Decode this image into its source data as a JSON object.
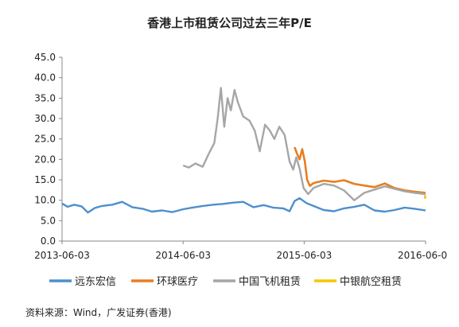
{
  "chart_data": {
    "type": "line",
    "title": "香港上市租赁公司过去三年P/E",
    "xlabel": "",
    "ylabel": "",
    "ylim": [
      0,
      45
    ],
    "yticks": [
      "0.0",
      "5.0",
      "10.0",
      "15.0",
      "20.0",
      "25.0",
      "30.0",
      "35.0",
      "40.0",
      "45.0"
    ],
    "xlim": [
      "2013-06-03",
      "2016-06-03"
    ],
    "xticks": [
      "2013-06-03",
      "2014-06-03",
      "2015-06-03",
      "2016-06-0"
    ],
    "grid": false,
    "legend_position": "bottom",
    "series": [
      {
        "name": "远东宏信",
        "color": "#4E8FCC",
        "points": [
          [
            "2013-06-03",
            9.2
          ],
          [
            "2013-06-20",
            8.4
          ],
          [
            "2013-07-10",
            8.9
          ],
          [
            "2013-08-01",
            8.5
          ],
          [
            "2013-08-20",
            7.0
          ],
          [
            "2013-09-10",
            8.1
          ],
          [
            "2013-10-01",
            8.6
          ],
          [
            "2013-11-01",
            8.9
          ],
          [
            "2013-12-01",
            9.6
          ],
          [
            "2014-01-01",
            8.3
          ],
          [
            "2014-02-01",
            7.9
          ],
          [
            "2014-03-01",
            7.2
          ],
          [
            "2014-04-01",
            7.5
          ],
          [
            "2014-05-01",
            7.1
          ],
          [
            "2014-06-03",
            7.8
          ],
          [
            "2014-07-01",
            8.2
          ],
          [
            "2014-08-01",
            8.6
          ],
          [
            "2014-09-01",
            8.9
          ],
          [
            "2014-10-01",
            9.1
          ],
          [
            "2014-11-01",
            9.4
          ],
          [
            "2014-12-01",
            9.6
          ],
          [
            "2015-01-01",
            8.3
          ],
          [
            "2015-02-01",
            8.8
          ],
          [
            "2015-03-01",
            8.2
          ],
          [
            "2015-04-01",
            8.0
          ],
          [
            "2015-04-20",
            7.3
          ],
          [
            "2015-05-05",
            9.8
          ],
          [
            "2015-05-20",
            10.5
          ],
          [
            "2015-06-10",
            9.3
          ],
          [
            "2015-07-01",
            8.6
          ],
          [
            "2015-08-01",
            7.6
          ],
          [
            "2015-09-01",
            7.3
          ],
          [
            "2015-10-01",
            8.0
          ],
          [
            "2015-11-01",
            8.4
          ],
          [
            "2015-12-01",
            8.9
          ],
          [
            "2016-01-01",
            7.5
          ],
          [
            "2016-02-01",
            7.2
          ],
          [
            "2016-03-01",
            7.6
          ],
          [
            "2016-04-01",
            8.2
          ],
          [
            "2016-05-01",
            7.9
          ],
          [
            "2016-06-03",
            7.5
          ]
        ]
      },
      {
        "name": "环球医疗",
        "color": "#E67E22",
        "points": [
          [
            "2015-05-05",
            23.0
          ],
          [
            "2015-05-12",
            21.5
          ],
          [
            "2015-05-20",
            20.0
          ],
          [
            "2015-05-28",
            22.5
          ],
          [
            "2015-06-05",
            19.5
          ],
          [
            "2015-06-12",
            15.0
          ],
          [
            "2015-06-20",
            13.5
          ],
          [
            "2015-07-01",
            14.2
          ],
          [
            "2015-08-01",
            14.8
          ],
          [
            "2015-09-01",
            14.5
          ],
          [
            "2015-10-01",
            14.9
          ],
          [
            "2015-11-01",
            14.0
          ],
          [
            "2015-12-01",
            13.6
          ],
          [
            "2016-01-01",
            13.2
          ],
          [
            "2016-02-01",
            14.1
          ],
          [
            "2016-03-01",
            13.0
          ],
          [
            "2016-04-01",
            12.4
          ],
          [
            "2016-05-01",
            12.1
          ],
          [
            "2016-06-03",
            11.8
          ]
        ]
      },
      {
        "name": "中国飞机租赁",
        "color": "#A6A6A6",
        "points": [
          [
            "2014-06-03",
            18.5
          ],
          [
            "2014-06-20",
            18.0
          ],
          [
            "2014-07-10",
            19.0
          ],
          [
            "2014-08-01",
            18.2
          ],
          [
            "2014-08-20",
            21.5
          ],
          [
            "2014-09-05",
            24.0
          ],
          [
            "2014-09-15",
            30.0
          ],
          [
            "2014-09-25",
            37.5
          ],
          [
            "2014-10-05",
            28.0
          ],
          [
            "2014-10-15",
            35.0
          ],
          [
            "2014-10-25",
            32.0
          ],
          [
            "2014-11-05",
            37.0
          ],
          [
            "2014-11-15",
            34.0
          ],
          [
            "2014-12-01",
            30.5
          ],
          [
            "2014-12-20",
            29.5
          ],
          [
            "2015-01-05",
            27.0
          ],
          [
            "2015-01-20",
            22.0
          ],
          [
            "2015-02-05",
            28.5
          ],
          [
            "2015-02-20",
            27.0
          ],
          [
            "2015-03-05",
            25.0
          ],
          [
            "2015-03-20",
            28.0
          ],
          [
            "2015-04-05",
            26.0
          ],
          [
            "2015-04-20",
            19.5
          ],
          [
            "2015-05-01",
            17.5
          ],
          [
            "2015-05-10",
            20.5
          ],
          [
            "2015-05-20",
            17.8
          ],
          [
            "2015-06-01",
            13.0
          ],
          [
            "2015-06-15",
            11.5
          ],
          [
            "2015-07-01",
            13.0
          ],
          [
            "2015-08-01",
            14.0
          ],
          [
            "2015-09-01",
            13.6
          ],
          [
            "2015-10-01",
            12.4
          ],
          [
            "2015-11-01",
            10.0
          ],
          [
            "2015-12-01",
            11.8
          ],
          [
            "2016-01-01",
            12.6
          ],
          [
            "2016-02-01",
            13.4
          ],
          [
            "2016-03-01",
            12.8
          ],
          [
            "2016-04-01",
            12.2
          ],
          [
            "2016-05-01",
            11.8
          ],
          [
            "2016-06-03",
            11.5
          ]
        ]
      },
      {
        "name": "中银航空租赁",
        "color": "#F7C600",
        "points": [
          [
            "2016-06-01",
            11.2
          ],
          [
            "2016-06-02",
            10.6
          ],
          [
            "2016-06-03",
            10.4
          ]
        ]
      }
    ]
  },
  "source": "资料来源：Wind，广发证券(香港)"
}
